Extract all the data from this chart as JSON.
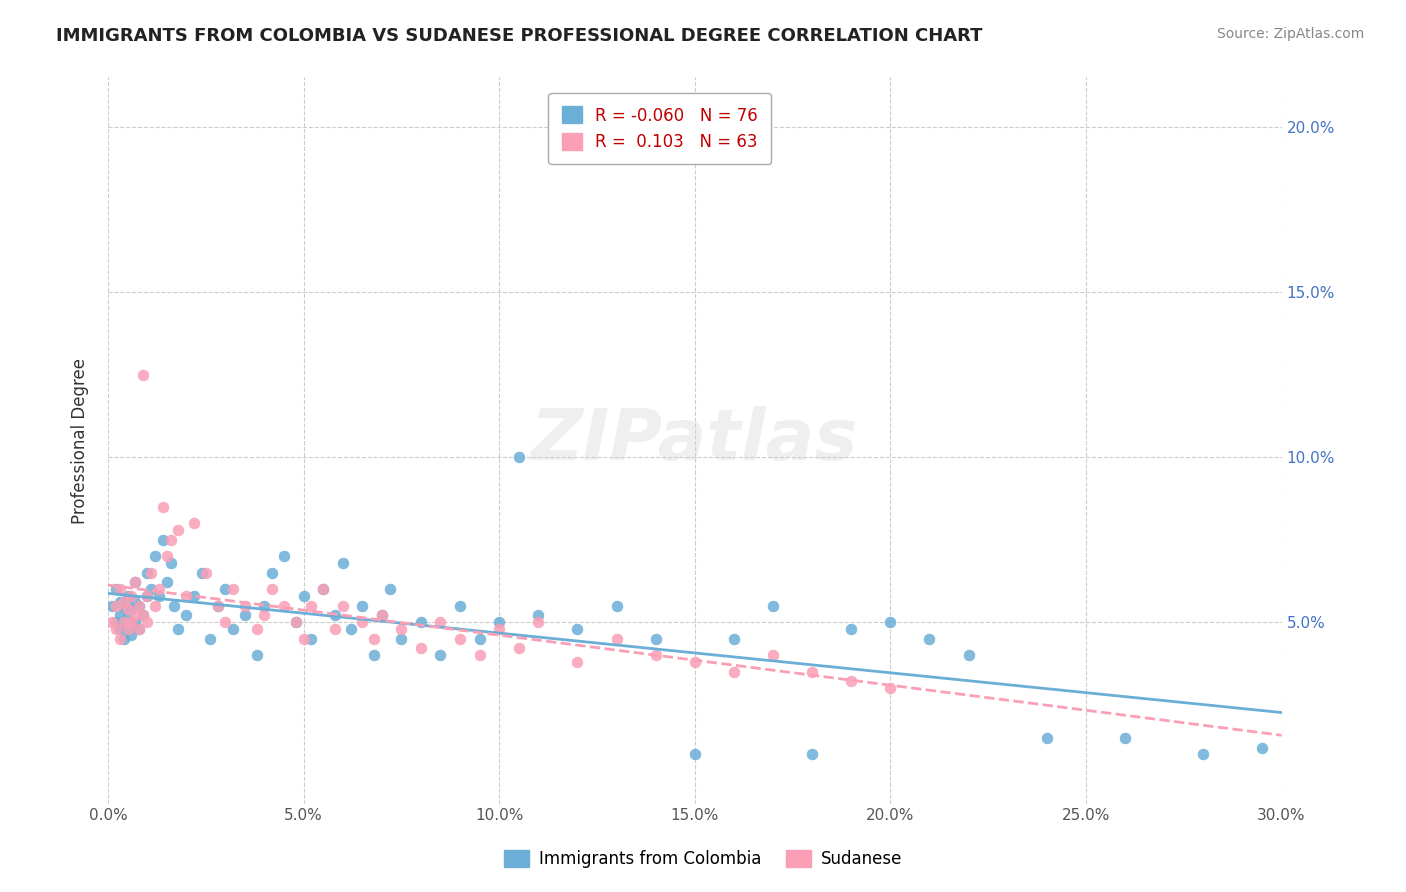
{
  "title": "IMMIGRANTS FROM COLOMBIA VS SUDANESE PROFESSIONAL DEGREE CORRELATION CHART",
  "source_text": "Source: ZipAtlas.com",
  "xlabel": "",
  "ylabel": "Professional Degree",
  "xlim": [
    0.0,
    0.3
  ],
  "ylim": [
    -0.005,
    0.215
  ],
  "xtick_labels": [
    "0.0%",
    "5.0%",
    "10.0%",
    "15.0%",
    "20.0%",
    "25.0%",
    "30.0%"
  ],
  "xtick_vals": [
    0.0,
    0.05,
    0.1,
    0.15,
    0.2,
    0.25,
    0.3
  ],
  "ytick_labels": [
    "5.0%",
    "10.0%",
    "15.0%",
    "20.0%"
  ],
  "ytick_vals": [
    0.05,
    0.1,
    0.15,
    0.2
  ],
  "colombia_color": "#6baed6",
  "sudanese_color": "#fa9fb5",
  "colombia_R": -0.06,
  "colombia_N": 76,
  "sudanese_R": 0.103,
  "sudanese_N": 63,
  "watermark": "ZIPatlas",
  "legend_label_1": "Immigrants from Colombia",
  "legend_label_2": "Sudanese",
  "colombia_scatter_x": [
    0.001,
    0.002,
    0.002,
    0.003,
    0.003,
    0.003,
    0.004,
    0.004,
    0.004,
    0.005,
    0.005,
    0.005,
    0.006,
    0.006,
    0.007,
    0.007,
    0.007,
    0.008,
    0.008,
    0.009,
    0.01,
    0.01,
    0.011,
    0.012,
    0.013,
    0.014,
    0.015,
    0.016,
    0.017,
    0.018,
    0.02,
    0.022,
    0.024,
    0.026,
    0.028,
    0.03,
    0.032,
    0.035,
    0.038,
    0.04,
    0.042,
    0.045,
    0.048,
    0.05,
    0.052,
    0.055,
    0.058,
    0.06,
    0.062,
    0.065,
    0.068,
    0.07,
    0.072,
    0.075,
    0.08,
    0.085,
    0.09,
    0.095,
    0.1,
    0.105,
    0.11,
    0.12,
    0.13,
    0.14,
    0.15,
    0.16,
    0.17,
    0.18,
    0.19,
    0.2,
    0.21,
    0.22,
    0.24,
    0.26,
    0.28,
    0.295
  ],
  "colombia_scatter_y": [
    0.055,
    0.05,
    0.06,
    0.048,
    0.052,
    0.056,
    0.045,
    0.05,
    0.055,
    0.048,
    0.052,
    0.058,
    0.046,
    0.054,
    0.05,
    0.056,
    0.062,
    0.048,
    0.055,
    0.052,
    0.058,
    0.065,
    0.06,
    0.07,
    0.058,
    0.075,
    0.062,
    0.068,
    0.055,
    0.048,
    0.052,
    0.058,
    0.065,
    0.045,
    0.055,
    0.06,
    0.048,
    0.052,
    0.04,
    0.055,
    0.065,
    0.07,
    0.05,
    0.058,
    0.045,
    0.06,
    0.052,
    0.068,
    0.048,
    0.055,
    0.04,
    0.052,
    0.06,
    0.045,
    0.05,
    0.04,
    0.055,
    0.045,
    0.05,
    0.1,
    0.052,
    0.048,
    0.055,
    0.045,
    0.01,
    0.045,
    0.055,
    0.01,
    0.048,
    0.05,
    0.045,
    0.04,
    0.015,
    0.015,
    0.01,
    0.012
  ],
  "sudanese_scatter_x": [
    0.001,
    0.002,
    0.002,
    0.003,
    0.003,
    0.004,
    0.004,
    0.005,
    0.005,
    0.006,
    0.006,
    0.007,
    0.007,
    0.008,
    0.008,
    0.009,
    0.009,
    0.01,
    0.01,
    0.011,
    0.012,
    0.013,
    0.014,
    0.015,
    0.016,
    0.018,
    0.02,
    0.022,
    0.025,
    0.028,
    0.03,
    0.032,
    0.035,
    0.038,
    0.04,
    0.042,
    0.045,
    0.048,
    0.05,
    0.052,
    0.055,
    0.058,
    0.06,
    0.065,
    0.068,
    0.07,
    0.075,
    0.08,
    0.085,
    0.09,
    0.095,
    0.1,
    0.105,
    0.11,
    0.12,
    0.13,
    0.14,
    0.15,
    0.16,
    0.17,
    0.18,
    0.19,
    0.2
  ],
  "sudanese_scatter_y": [
    0.05,
    0.048,
    0.055,
    0.045,
    0.06,
    0.05,
    0.056,
    0.048,
    0.054,
    0.05,
    0.058,
    0.052,
    0.062,
    0.048,
    0.055,
    0.052,
    0.125,
    0.05,
    0.058,
    0.065,
    0.055,
    0.06,
    0.085,
    0.07,
    0.075,
    0.078,
    0.058,
    0.08,
    0.065,
    0.055,
    0.05,
    0.06,
    0.055,
    0.048,
    0.052,
    0.06,
    0.055,
    0.05,
    0.045,
    0.055,
    0.06,
    0.048,
    0.055,
    0.05,
    0.045,
    0.052,
    0.048,
    0.042,
    0.05,
    0.045,
    0.04,
    0.048,
    0.042,
    0.05,
    0.038,
    0.045,
    0.04,
    0.038,
    0.035,
    0.04,
    0.035,
    0.032,
    0.03
  ]
}
